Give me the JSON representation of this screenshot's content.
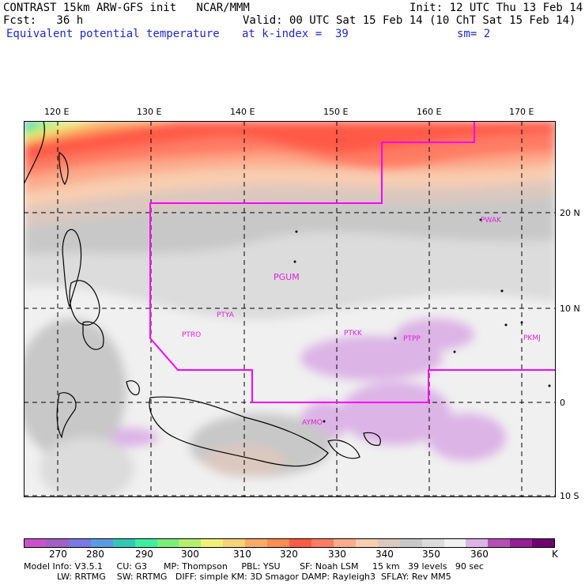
{
  "header": {
    "line1_left": "CONTRAST 15km ARW-GFS init   NCAR/MMM",
    "line1_right": "Init: 12 UTC Thu 13 Feb 14",
    "line2_left": "Fcst:   36 h",
    "line2_right": "Valid: 00 UTC Sat 15 Feb 14 (10 ChT Sat 15 Feb 14)",
    "line3_left": "Equivalent potential temperature",
    "line3_mid": "at k-index =  39",
    "line3_right": "sm= 2"
  },
  "map": {
    "lon_labels": [
      "120 E",
      "130 E",
      "140 E",
      "150 E",
      "160 E",
      "170 E"
    ],
    "lat_labels": [
      "20 N",
      "10 N",
      "0",
      "10 S"
    ],
    "stations": [
      "PWAK",
      "PGUM",
      "PTYA",
      "PTRO",
      "PTKK",
      "PTPP",
      "PKMJ",
      "AYMO"
    ],
    "colors": {
      "boundary": "#ff00ff",
      "station": "#e020e0"
    }
  },
  "colorbar": {
    "colors": [
      "#c853c8",
      "#a060c8",
      "#7878e6",
      "#5a9be6",
      "#32c8b4",
      "#3cf0a0",
      "#78f078",
      "#b4f06e",
      "#f0f078",
      "#fad278",
      "#faaa64",
      "#ff8c50",
      "#ff5a46",
      "#ff7c64",
      "#fcab8c",
      "#f8cdb0",
      "#dcc8be",
      "#c8c8c8",
      "#dcdcdc",
      "#f0f0f0",
      "#dcb4e6",
      "#b450b4",
      "#961e96",
      "#6e006e"
    ],
    "labels": [
      "270",
      "280",
      "290",
      "300",
      "310",
      "320",
      "330",
      "340",
      "350",
      "360",
      "K"
    ]
  },
  "footer": {
    "line1": "Model Info: V3.5.1     CU: G3      MP: Thompson     PBL: YSU       SF: Noah LSM     15 km   39 levels   90 sec",
    "line2": "            LW: RRTMG    SW: RRTMG   DIFF: simple KM: 3D Smagor DAMP: Rayleigh3  SFLAY: Rev MM5"
  }
}
